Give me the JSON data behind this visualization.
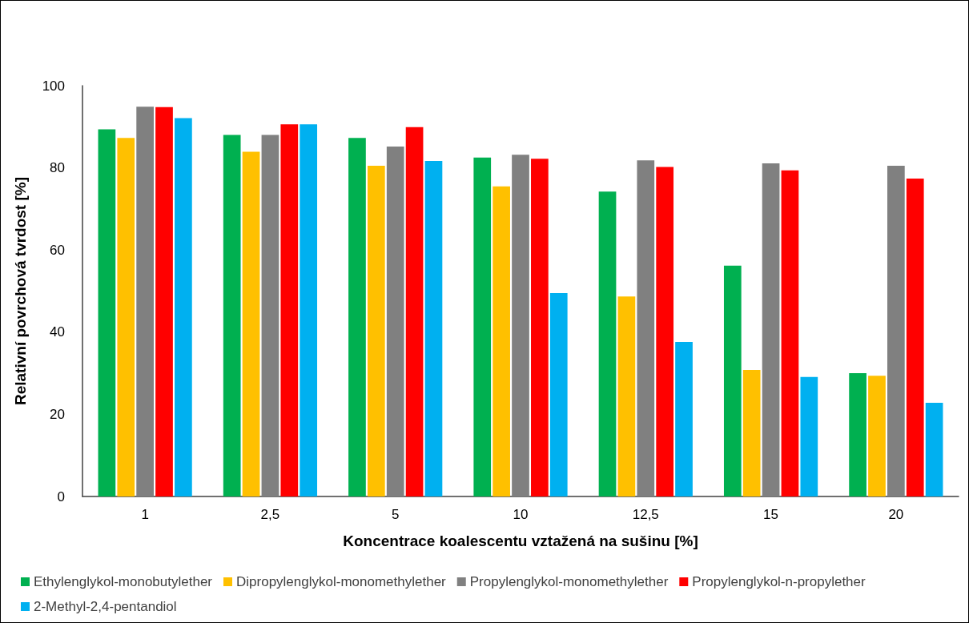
{
  "chart_data": {
    "type": "bar",
    "xlabel": "Koncentrace koalescentu vztažená na sušinu [%]",
    "ylabel": "Relativní povrchová tvrdost [%]",
    "categories": [
      "1",
      "2,5",
      "5",
      "10",
      "12,5",
      "15",
      "20"
    ],
    "series": [
      {
        "name": "Ethylenglykol-monobutylether",
        "color": "#00b050",
        "values": [
          89.4,
          88.0,
          87.3,
          82.5,
          74.2,
          56.2,
          30.0
        ]
      },
      {
        "name": "Dipropylenglykol-monomethylether",
        "color": "#ffc000",
        "values": [
          87.3,
          83.9,
          80.5,
          75.5,
          48.7,
          30.8,
          29.4
        ]
      },
      {
        "name": "Propylenglykol-monomethylether",
        "color": "#808080",
        "values": [
          94.9,
          88.0,
          85.2,
          83.2,
          81.8,
          81.1,
          80.5
        ]
      },
      {
        "name": "Propylenglykol-n-propylether",
        "color": "#ff0000",
        "values": [
          94.8,
          90.6,
          89.9,
          82.2,
          80.2,
          79.4,
          77.4
        ]
      },
      {
        "name": "2-Methyl-2,4-pentandiol",
        "color": "#00b0f0",
        "values": [
          92.1,
          90.6,
          81.7,
          49.5,
          37.6,
          29.1,
          22.8
        ]
      }
    ],
    "ylim": [
      0,
      100
    ],
    "yticks": [
      0,
      20,
      40,
      60,
      80,
      100
    ],
    "grid": false,
    "legend": "bottom"
  }
}
